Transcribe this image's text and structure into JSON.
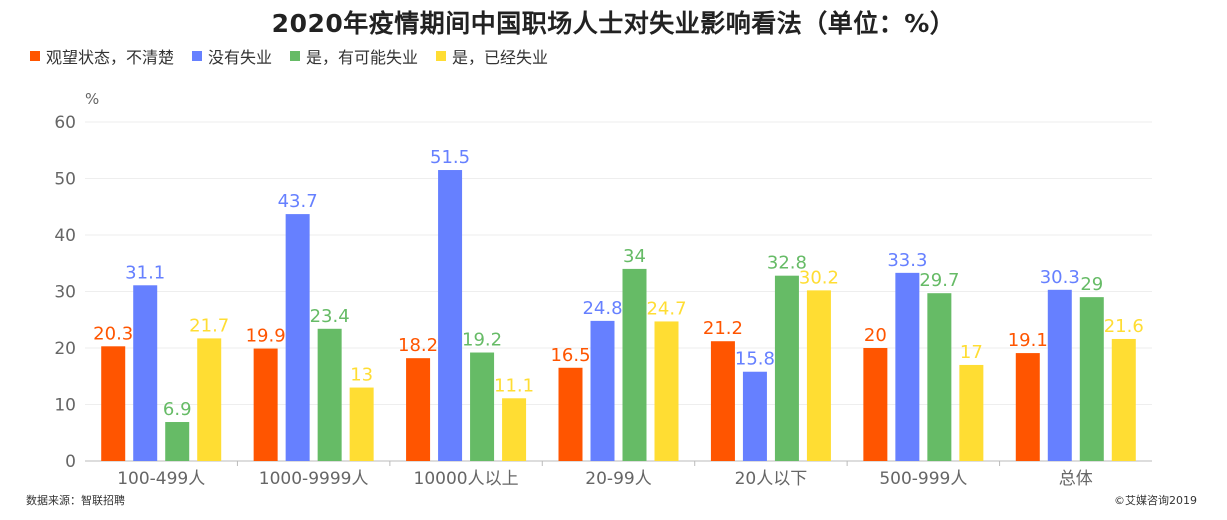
{
  "chart_data": {
    "type": "bar",
    "title": "2020年疫情期间中国职场人士对失业影响看法（单位：%）",
    "ylabel": "%",
    "xlabel": "",
    "ylim": [
      0,
      60
    ],
    "yticks": [
      0,
      10,
      20,
      30,
      40,
      50,
      60
    ],
    "grid": true,
    "legend_position": "top-left",
    "categories": [
      "100-499人",
      "1000-9999人",
      "10000人以上",
      "20-99人",
      "20人以下",
      "500-999人",
      "总体"
    ],
    "series": [
      {
        "name": "观望状态，不清楚",
        "color": "#ff5500",
        "values": [
          20.3,
          19.9,
          18.2,
          16.5,
          21.2,
          20,
          19.1
        ]
      },
      {
        "name": "没有失业",
        "color": "#6680ff",
        "values": [
          31.1,
          43.7,
          51.5,
          24.8,
          15.8,
          33.3,
          30.3
        ]
      },
      {
        "name": "是，有可能失业",
        "color": "#66bb66",
        "values": [
          6.9,
          23.4,
          19.2,
          34,
          32.8,
          29.7,
          29
        ]
      },
      {
        "name": "是，已经失业",
        "color": "#ffdd33",
        "values": [
          21.7,
          13,
          11.1,
          24.7,
          30.2,
          17,
          21.6
        ]
      }
    ]
  },
  "footer": {
    "source": "数据来源：智联招聘",
    "copyright": "©艾媒咨询2019"
  }
}
